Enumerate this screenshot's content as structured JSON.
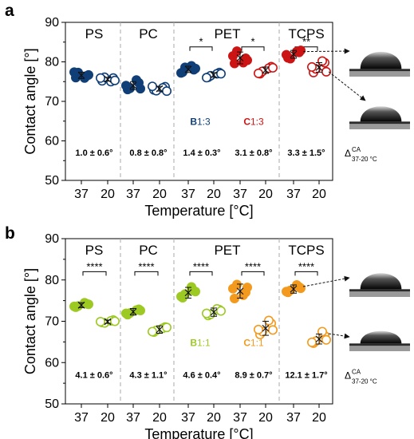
{
  "figure": {
    "x_tick_labels": [
      "37",
      "20"
    ],
    "symbol_main": "Δ",
    "symbol_sup": "CA",
    "symbol_sub": "37-20 °C"
  },
  "chart_data": [
    {
      "type": "scatter",
      "panel_label": "a",
      "xlabel": "Temperature [°C]",
      "ylabel": "Contact angle [°]",
      "ylim": [
        50,
        90
      ],
      "yticks": [
        50,
        60,
        70,
        80,
        90
      ],
      "groups": [
        "PS",
        "PC",
        "PET",
        "TCPS"
      ],
      "conditions": [
        "37",
        "20"
      ],
      "color_map": {
        "PS": "#103f78",
        "PC": "#103f78",
        "PET_a": "#103f78",
        "PET_b": "#cc1414",
        "TCPS": "#cc1414"
      },
      "series": [
        {
          "group": "PS",
          "temp": "37",
          "filled": true,
          "color": "#103f78",
          "mean": 76.6,
          "sd": 0.8,
          "points": [
            76.0,
            76.5,
            77.3,
            75.9,
            77.4,
            76.7
          ]
        },
        {
          "group": "PS",
          "temp": "20",
          "filled": false,
          "color": "#103f78",
          "mean": 75.6,
          "sd": 0.5,
          "points": [
            75.2,
            75.9,
            76.1,
            75.0,
            75.9,
            75.3
          ]
        },
        {
          "group": "PC",
          "temp": "37",
          "filled": true,
          "color": "#103f78",
          "mean": 74.0,
          "sd": 1.0,
          "points": [
            73.0,
            74.7,
            73.3,
            75.4,
            74.0,
            73.2
          ]
        },
        {
          "group": "PC",
          "temp": "20",
          "filled": false,
          "color": "#103f78",
          "mean": 73.2,
          "sd": 0.6,
          "points": [
            72.9,
            73.7,
            72.7,
            73.4,
            73.8,
            72.6
          ]
        },
        {
          "group": "PET",
          "temp": "37",
          "filled": true,
          "color": "#103f78",
          "mean": 78.1,
          "sd": 0.8,
          "points": [
            77.4,
            78.0,
            78.6,
            79.0,
            77.2,
            78.3
          ]
        },
        {
          "group": "PET",
          "temp": "20",
          "filled": false,
          "color": "#103f78",
          "mean": 76.7,
          "sd": 0.6,
          "points": [
            76.1,
            77.3,
            76.5,
            77.0,
            76.0,
            77.0
          ]
        },
        {
          "group": "PET",
          "temp": "37",
          "filled": true,
          "color": "#cc1414",
          "mean": 81.0,
          "sd": 1.5,
          "points": [
            79.6,
            80.9,
            82.7,
            79.8,
            81.5,
            80.4
          ]
        },
        {
          "group": "PET",
          "temp": "20",
          "filled": false,
          "color": "#cc1414",
          "mean": 77.9,
          "sd": 0.8,
          "points": [
            77.0,
            78.8,
            77.6,
            78.4,
            77.1,
            78.5
          ]
        },
        {
          "group": "TCPS",
          "temp": "37",
          "filled": true,
          "color": "#cc1414",
          "mean": 81.9,
          "sd": 1.0,
          "points": [
            81.0,
            82.4,
            80.8,
            82.6,
            81.8,
            82.9
          ]
        },
        {
          "group": "TCPS",
          "temp": "20",
          "filled": false,
          "color": "#cc1414",
          "mean": 78.6,
          "sd": 1.2,
          "points": [
            77.3,
            79.8,
            78.2,
            80.2,
            78.7,
            77.5
          ]
        }
      ],
      "significance": [
        {
          "label": "*",
          "from": 4,
          "to": 5,
          "y": 83.8
        },
        {
          "label": "*",
          "from": 6,
          "to": 7,
          "y": 83.8
        },
        {
          "label": "**",
          "from": 8,
          "to": 9,
          "y": 83.8
        }
      ],
      "deltas": [
        "1.0 ± 0.6°",
        "0.8 ± 0.8°",
        "1.4 ± 0.3°",
        "3.1 ± 0.8°",
        "3.3 ± 1.5°"
      ],
      "sub_labels": [
        {
          "prefix": "B",
          "ratio": "1:3",
          "color": "#103f78"
        },
        {
          "prefix": "C",
          "ratio": "1:3",
          "color": "#cc1414"
        }
      ]
    },
    {
      "type": "scatter",
      "panel_label": "b",
      "xlabel": "Temperature [°C]",
      "ylabel": "Contact angle [°]",
      "ylim": [
        50,
        90
      ],
      "yticks": [
        50,
        60,
        70,
        80,
        90
      ],
      "groups": [
        "PS",
        "PC",
        "PET",
        "TCPS"
      ],
      "conditions": [
        "37",
        "20"
      ],
      "color_map": {
        "PS": "#9dc923",
        "PC": "#9dc923",
        "PET_a": "#9dc923",
        "PET_b": "#f39a1e",
        "TCPS": "#f39a1e"
      },
      "series": [
        {
          "group": "PS",
          "temp": "37",
          "filled": true,
          "color": "#9dc923",
          "mean": 73.9,
          "sd": 0.6,
          "points": [
            73.4,
            74.2,
            73.7,
            74.5,
            73.6,
            74.1
          ]
        },
        {
          "group": "PS",
          "temp": "20",
          "filled": false,
          "color": "#9dc923",
          "mean": 69.9,
          "sd": 0.4,
          "points": [
            69.7,
            70.3,
            69.6,
            70.1,
            69.9,
            70.0
          ]
        },
        {
          "group": "PC",
          "temp": "37",
          "filled": true,
          "color": "#9dc923",
          "mean": 72.3,
          "sd": 0.8,
          "points": [
            71.6,
            72.9,
            72.0,
            72.7,
            71.9,
            72.6
          ]
        },
        {
          "group": "PC",
          "temp": "20",
          "filled": false,
          "color": "#9dc923",
          "mean": 68.0,
          "sd": 0.9,
          "points": [
            67.4,
            68.6,
            67.8,
            68.3,
            67.5,
            68.5
          ]
        },
        {
          "group": "PET",
          "temp": "37",
          "filled": true,
          "color": "#9dc923",
          "mean": 76.9,
          "sd": 1.3,
          "points": [
            75.7,
            77.4,
            76.6,
            78.3,
            76.0,
            77.2
          ]
        },
        {
          "group": "PET",
          "temp": "20",
          "filled": false,
          "color": "#9dc923",
          "mean": 72.2,
          "sd": 1.0,
          "points": [
            71.4,
            72.8,
            71.7,
            73.0,
            71.9,
            72.5
          ]
        },
        {
          "group": "PET",
          "temp": "37",
          "filled": true,
          "color": "#f39a1e",
          "mean": 77.3,
          "sd": 1.7,
          "points": [
            75.5,
            77.0,
            78.9,
            76.3,
            77.9,
            78.2
          ]
        },
        {
          "group": "PET",
          "temp": "20",
          "filled": false,
          "color": "#f39a1e",
          "mean": 68.3,
          "sd": 1.7,
          "points": [
            66.8,
            69.5,
            67.5,
            70.2,
            68.0,
            67.9
          ]
        },
        {
          "group": "TCPS",
          "temp": "37",
          "filled": true,
          "color": "#f39a1e",
          "mean": 77.8,
          "sd": 1.0,
          "points": [
            77.0,
            78.3,
            77.5,
            78.8,
            77.2,
            78.0
          ]
        },
        {
          "group": "TCPS",
          "temp": "20",
          "filled": false,
          "color": "#f39a1e",
          "mean": 65.7,
          "sd": 1.2,
          "points": [
            64.7,
            66.5,
            65.2,
            67.5,
            64.9,
            65.5
          ]
        }
      ],
      "significance": [
        {
          "label": "****",
          "from": 0,
          "to": 1,
          "y": 82.0
        },
        {
          "label": "****",
          "from": 2,
          "to": 3,
          "y": 82.0
        },
        {
          "label": "****",
          "from": 4,
          "to": 5,
          "y": 82.0
        },
        {
          "label": "****",
          "from": 6,
          "to": 7,
          "y": 82.0
        },
        {
          "label": "****",
          "from": 8,
          "to": 9,
          "y": 82.0
        }
      ],
      "deltas": [
        "4.1 ± 0.6°",
        "4.3 ± 1.1°",
        "4.6 ± 0.4°",
        "8.9 ± 0.7°",
        "12.1 ± 1.7°"
      ],
      "sub_labels": [
        {
          "prefix": "B",
          "ratio": "1:1",
          "color": "#9dc923"
        },
        {
          "prefix": "C",
          "ratio": "1:1",
          "color": "#f39a1e"
        }
      ]
    }
  ]
}
